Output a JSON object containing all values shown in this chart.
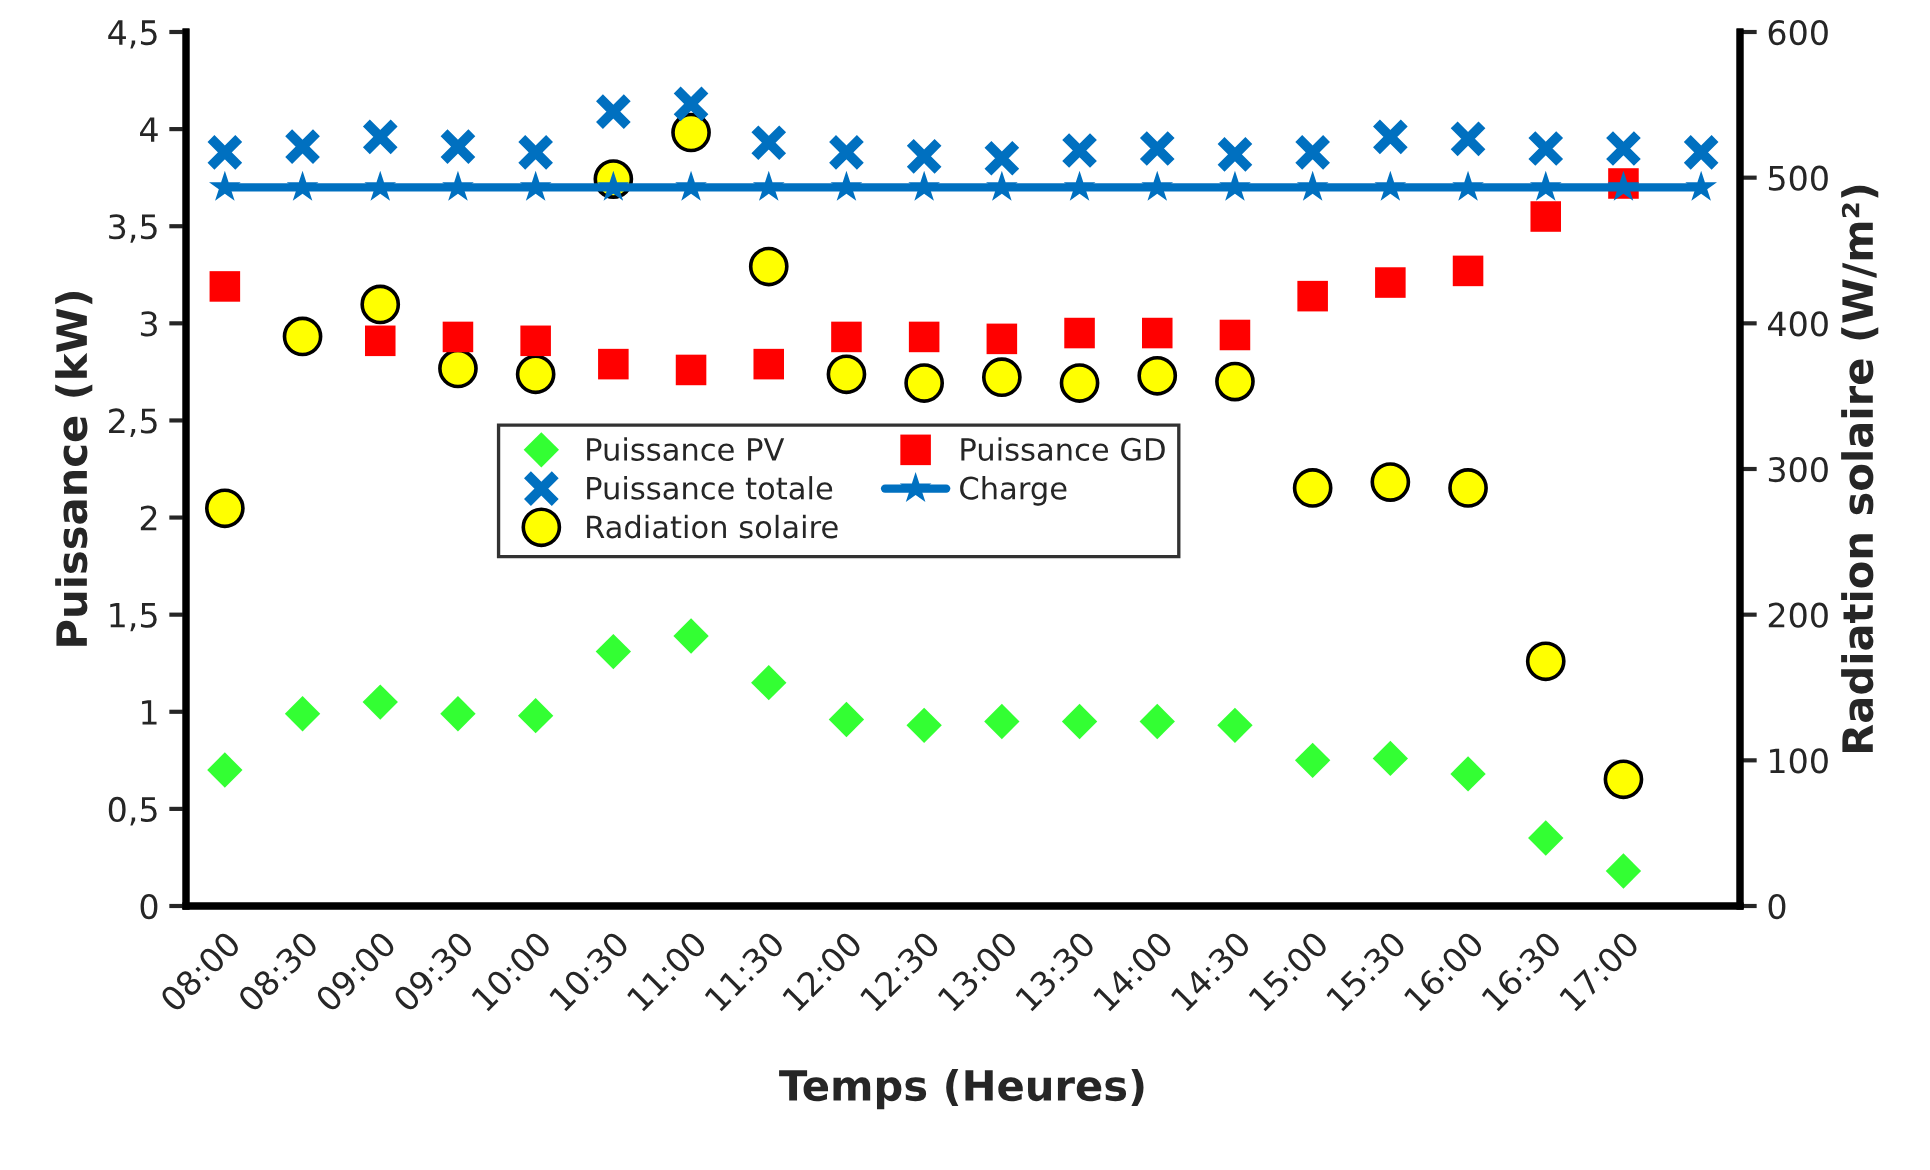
{
  "chart_data": {
    "type": "scatter",
    "xlabel": "Temps (Heures)",
    "ylabel": "Puissance (kW)",
    "y2label": "Radiation solaire (W/m²)",
    "categories": [
      "08:00",
      "08:30",
      "09:00",
      "09:30",
      "10:00",
      "10:30",
      "11:00",
      "11:30",
      "12:00",
      "12:30",
      "13:00",
      "13:30",
      "14:00",
      "14:30",
      "15:00",
      "15:30",
      "16:00",
      "16:30",
      "17:00",
      null
    ],
    "series": [
      {
        "name": "Puissance PV",
        "color": "#33ff33",
        "marker": "diamond",
        "values": [
          0.7,
          0.99,
          1.05,
          0.99,
          0.98,
          1.31,
          1.39,
          1.15,
          0.96,
          0.93,
          0.95,
          0.95,
          0.95,
          0.93,
          0.75,
          0.76,
          0.68,
          0.35,
          0.18,
          null
        ]
      },
      {
        "name": "Puissance GD",
        "color": "#ff0000",
        "marker": "square",
        "values": [
          3.19,
          null,
          2.91,
          2.93,
          2.91,
          2.79,
          2.76,
          2.79,
          2.93,
          2.93,
          2.92,
          2.95,
          2.95,
          2.94,
          3.14,
          3.21,
          3.27,
          3.55,
          3.72,
          null
        ]
      },
      {
        "name": "Puissance totale",
        "color": "#0070c0",
        "marker": "cross",
        "values": [
          3.88,
          3.91,
          3.96,
          3.91,
          3.88,
          4.09,
          4.13,
          3.93,
          3.88,
          3.86,
          3.85,
          3.89,
          3.9,
          3.87,
          3.88,
          3.96,
          3.95,
          3.9,
          3.9,
          3.88
        ]
      },
      {
        "name": "Charge",
        "type": "line",
        "color": "#0070c0",
        "marker": "star",
        "values": [
          3.7,
          3.7,
          3.7,
          3.7,
          3.7,
          3.7,
          3.7,
          3.7,
          3.7,
          3.7,
          3.7,
          3.7,
          3.7,
          3.7,
          3.7,
          3.7,
          3.7,
          3.7,
          3.7,
          3.7
        ]
      },
      {
        "name": "Radiation solaire",
        "color": "#ffff00",
        "marker": "circle",
        "axis": "y2",
        "values": [
          273,
          391,
          413,
          369,
          365,
          499,
          531,
          439,
          365,
          359,
          363,
          359,
          364,
          360,
          287,
          291,
          287,
          168,
          87,
          null
        ]
      }
    ],
    "ylim": [
      0,
      4.5
    ],
    "yticks": [
      0,
      {
        "value": 0.5,
        "label": "0,5"
      },
      1,
      {
        "value": 1.5,
        "label": "1,5"
      },
      2,
      {
        "value": 2.5,
        "label": "2,5"
      },
      3,
      {
        "value": 3.5,
        "label": "3,5"
      },
      4,
      {
        "value": 4.5,
        "label": "4,5"
      }
    ],
    "y2lim": [
      0,
      600
    ],
    "y2ticks": [
      0,
      100,
      200,
      300,
      400,
      500,
      600
    ],
    "grid": false,
    "legend": "center"
  }
}
